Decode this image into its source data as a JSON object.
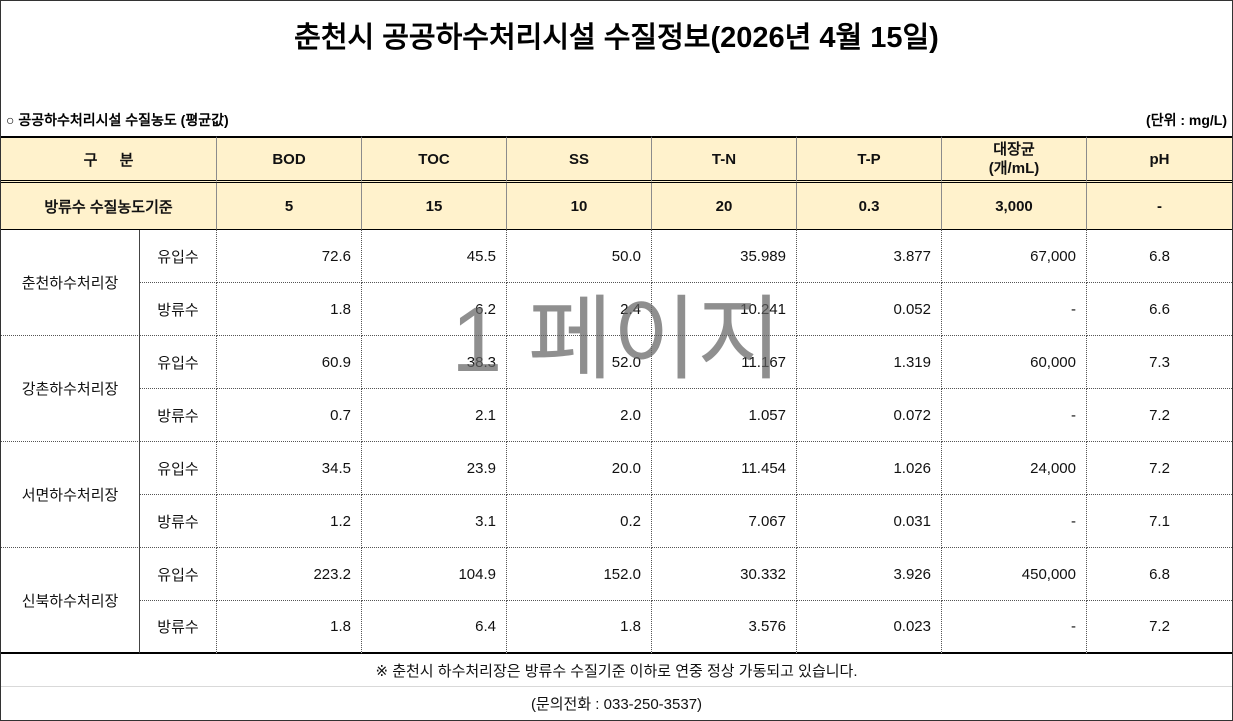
{
  "title": "춘천시 공공하수처리시설 수질정보(2026년 4월 15일)",
  "subheader": {
    "section_label": "○ 공공하수처리시설 수질농도 (평균값)",
    "unit_label": "(단위 : mg/L)"
  },
  "table": {
    "header": {
      "category_label": "구 분",
      "columns": [
        {
          "label": "BOD"
        },
        {
          "label": "TOC"
        },
        {
          "label": "SS"
        },
        {
          "label": "T-N"
        },
        {
          "label": "T-P"
        },
        {
          "label": "대장균",
          "sub_label": "(개/mL)"
        },
        {
          "label": "pH"
        }
      ]
    },
    "standard": {
      "label": "방류수 수질농도기준",
      "values": [
        "5",
        "15",
        "10",
        "20",
        "0.3",
        "3,000",
        "-"
      ]
    },
    "plants": [
      {
        "name": "춘천하수처리장",
        "rows": [
          {
            "type": "유입수",
            "values": [
              "72.6",
              "45.5",
              "50.0",
              "35.989",
              "3.877",
              "67,000",
              "6.8"
            ]
          },
          {
            "type": "방류수",
            "values": [
              "1.8",
              "6.2",
              "2.4",
              "10.241",
              "0.052",
              "-",
              "6.6"
            ]
          }
        ]
      },
      {
        "name": "강촌하수처리장",
        "rows": [
          {
            "type": "유입수",
            "values": [
              "60.9",
              "38.3",
              "52.0",
              "11.167",
              "1.319",
              "60,000",
              "7.3"
            ]
          },
          {
            "type": "방류수",
            "values": [
              "0.7",
              "2.1",
              "2.0",
              "1.057",
              "0.072",
              "-",
              "7.2"
            ]
          }
        ]
      },
      {
        "name": "서면하수처리장",
        "rows": [
          {
            "type": "유입수",
            "values": [
              "34.5",
              "23.9",
              "20.0",
              "11.454",
              "1.026",
              "24,000",
              "7.2"
            ]
          },
          {
            "type": "방류수",
            "values": [
              "1.2",
              "3.1",
              "0.2",
              "7.067",
              "0.031",
              "-",
              "7.1"
            ]
          }
        ]
      },
      {
        "name": "신북하수처리장",
        "rows": [
          {
            "type": "유입수",
            "values": [
              "223.2",
              "104.9",
              "152.0",
              "30.332",
              "3.926",
              "450,000",
              "6.8"
            ]
          },
          {
            "type": "방류수",
            "values": [
              "1.8",
              "6.4",
              "1.8",
              "3.576",
              "0.023",
              "-",
              "7.2"
            ]
          }
        ]
      }
    ]
  },
  "footer": {
    "note": "※ 춘천시 하수처리장은 방류수 수질기준 이하로 연중 정상 가동되고 있습니다.",
    "contact": "(문의전화 : 033-250-3537)"
  },
  "page_watermark": "1 페이지",
  "colors": {
    "header_background": "#FFF2CC",
    "border": "#000000",
    "watermark": "#808080"
  }
}
